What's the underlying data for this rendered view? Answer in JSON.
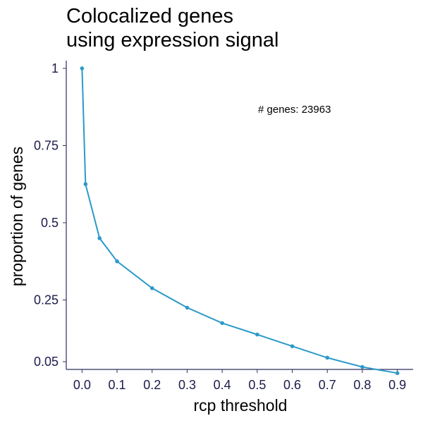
{
  "chart_data": {
    "type": "line",
    "title_lines": [
      "Colocalized genes",
      "using expression signal"
    ],
    "xlabel": "rcp threshold",
    "ylabel": "proportion of genes",
    "annotation": "# genes: 23963",
    "x_ticks": [
      0.0,
      0.1,
      0.2,
      0.3,
      0.4,
      0.5,
      0.6,
      0.7,
      0.8,
      0.9
    ],
    "x_tick_labels": [
      "0.0",
      "0.1",
      "0.2",
      "0.3",
      "0.4",
      "0.5",
      "0.6",
      "0.7",
      "0.8",
      "0.9"
    ],
    "y_ticks": [
      0.05,
      0.25,
      0.5,
      0.75,
      1
    ],
    "y_tick_labels": [
      "0.05",
      "0.25",
      "0.5",
      "0.75",
      "1"
    ],
    "xlim": [
      -0.045,
      0.945
    ],
    "ylim": [
      0.025,
      1.025
    ],
    "grid": false,
    "color": "#2b9ac9",
    "series": [
      {
        "x": [
          0.0,
          0.01,
          0.05,
          0.1,
          0.2,
          0.3,
          0.4,
          0.5,
          0.6,
          0.7,
          0.8,
          0.9
        ],
        "values": [
          1.0,
          0.625,
          0.45,
          0.375,
          0.288,
          0.225,
          0.175,
          0.138,
          0.1,
          0.063,
          0.033,
          0.013
        ]
      }
    ]
  }
}
